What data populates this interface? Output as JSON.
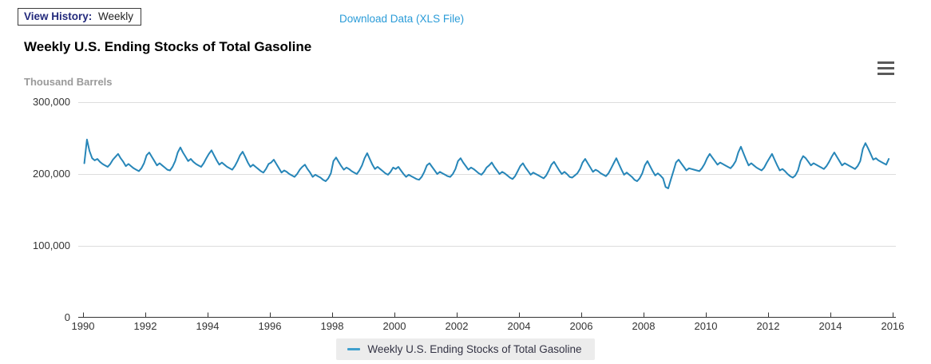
{
  "toolbar": {
    "view_history_label": "View History:",
    "view_history_value": "Weekly",
    "download_link_label": "Download Data (XLS File)"
  },
  "header": {
    "title": "Weekly U.S. Ending Stocks of Total Gasoline",
    "unit_label": "Thousand Barrels",
    "menu_icon": "hamburger-icon"
  },
  "colors": {
    "series_line": "#2786b8",
    "legend_mark": "#3f9fcd",
    "link_blue": "#2b9cd8",
    "gridline": "#dddddd",
    "axis_line": "#333333",
    "axis_text": "#333333"
  },
  "legend": {
    "label": "Weekly U.S. Ending Stocks of Total Gasoline"
  },
  "chart_data": {
    "type": "line",
    "title": "Weekly U.S. Ending Stocks of Total Gasoline",
    "ylabel": "Thousand Barrels",
    "xlabel": "",
    "ylim": [
      0,
      300000
    ],
    "xlim": [
      1990,
      2016
    ],
    "grid": "horizontal",
    "legend_position": "bottom-center",
    "yticks": [
      {
        "value": 300000,
        "label": "300,000"
      },
      {
        "value": 200000,
        "label": "200,000"
      },
      {
        "value": 100000,
        "label": "100,000"
      },
      {
        "value": 0,
        "label": "0"
      }
    ],
    "xticks": [
      1990,
      1992,
      1994,
      1996,
      1998,
      2000,
      2002,
      2004,
      2006,
      2008,
      2010,
      2012,
      2014,
      2016
    ],
    "series": [
      {
        "name": "Weekly U.S. Ending Stocks of Total Gasoline",
        "unit": "thousand barrels",
        "resolution": "monthly-approximation-of-weekly",
        "start_year": 1990,
        "points_per_year": 12,
        "values": [
          215000,
          248000,
          232000,
          222000,
          219000,
          221000,
          217000,
          214000,
          212000,
          210000,
          214000,
          220000,
          224000,
          228000,
          222000,
          217000,
          211000,
          214000,
          211000,
          208000,
          206000,
          204000,
          208000,
          215000,
          226000,
          230000,
          224000,
          218000,
          212000,
          215000,
          212000,
          209000,
          206000,
          205000,
          210000,
          218000,
          230000,
          237000,
          230000,
          224000,
          218000,
          221000,
          217000,
          214000,
          212000,
          210000,
          215000,
          222000,
          228000,
          233000,
          226000,
          219000,
          213000,
          216000,
          213000,
          210000,
          208000,
          206000,
          211000,
          218000,
          226000,
          231000,
          224000,
          216000,
          210000,
          213000,
          210000,
          207000,
          204000,
          202000,
          207000,
          214000,
          216000,
          220000,
          214000,
          208000,
          202000,
          205000,
          203000,
          200000,
          198000,
          196000,
          200000,
          206000,
          210000,
          213000,
          207000,
          202000,
          196000,
          199000,
          197000,
          195000,
          192000,
          190000,
          194000,
          201000,
          218000,
          223000,
          217000,
          211000,
          206000,
          209000,
          207000,
          204000,
          202000,
          200000,
          205000,
          212000,
          222000,
          229000,
          221000,
          213000,
          207000,
          210000,
          207000,
          204000,
          201000,
          199000,
          203000,
          209000,
          207000,
          210000,
          205000,
          200000,
          196000,
          199000,
          197000,
          195000,
          193000,
          192000,
          196000,
          203000,
          212000,
          215000,
          210000,
          205000,
          200000,
          203000,
          201000,
          199000,
          197000,
          196000,
          200000,
          207000,
          218000,
          222000,
          216000,
          211000,
          206000,
          209000,
          207000,
          204000,
          201000,
          199000,
          203000,
          209000,
          212000,
          216000,
          210000,
          205000,
          200000,
          203000,
          201000,
          198000,
          195000,
          193000,
          197000,
          204000,
          211000,
          215000,
          209000,
          204000,
          199000,
          202000,
          200000,
          198000,
          196000,
          194000,
          198000,
          205000,
          213000,
          217000,
          211000,
          205000,
          200000,
          203000,
          200000,
          196000,
          195000,
          198000,
          201000,
          207000,
          216000,
          221000,
          215000,
          209000,
          203000,
          206000,
          204000,
          201000,
          199000,
          197000,
          201000,
          208000,
          215000,
          222000,
          214000,
          206000,
          199000,
          202000,
          199000,
          196000,
          192000,
          190000,
          194000,
          201000,
          212000,
          218000,
          211000,
          204000,
          198000,
          201000,
          198000,
          194000,
          182000,
          180000,
          192000,
          204000,
          216000,
          220000,
          215000,
          210000,
          205000,
          208000,
          207000,
          206000,
          205000,
          204000,
          208000,
          214000,
          222000,
          228000,
          223000,
          218000,
          213000,
          216000,
          214000,
          212000,
          210000,
          208000,
          212000,
          218000,
          230000,
          238000,
          229000,
          220000,
          212000,
          215000,
          212000,
          209000,
          207000,
          205000,
          209000,
          216000,
          222000,
          228000,
          220000,
          212000,
          205000,
          207000,
          204000,
          200000,
          197000,
          195000,
          198000,
          205000,
          218000,
          225000,
          222000,
          217000,
          212000,
          215000,
          213000,
          211000,
          209000,
          207000,
          211000,
          217000,
          224000,
          230000,
          224000,
          218000,
          212000,
          215000,
          213000,
          211000,
          209000,
          207000,
          211000,
          218000,
          235000,
          243000,
          236000,
          228000,
          220000,
          222000,
          219000,
          217000,
          215000,
          213000,
          221000
        ]
      }
    ]
  }
}
